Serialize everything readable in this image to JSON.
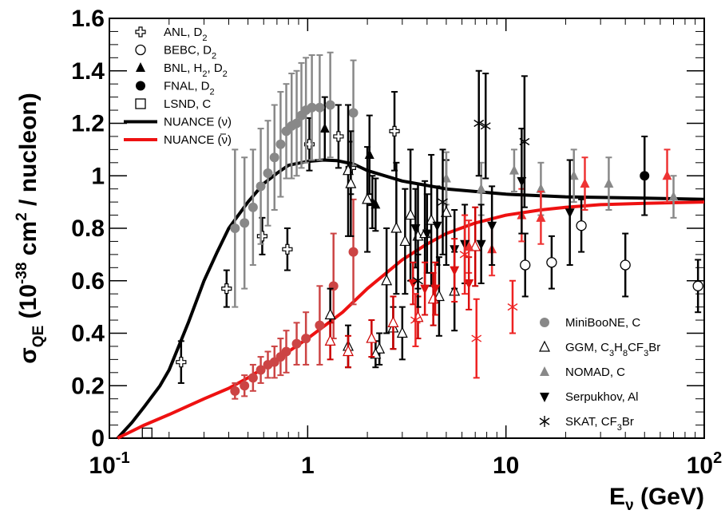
{
  "chart_data": {
    "type": "scatter",
    "x_scale": "log",
    "xlim": [
      0.1,
      100
    ],
    "ylim": [
      0,
      1.6
    ],
    "grid": false,
    "x_ticks": [
      {
        "value": 0.1,
        "base": "10",
        "exp": "-1"
      },
      {
        "value": 1,
        "base": "1",
        "exp": ""
      },
      {
        "value": 10,
        "base": "10",
        "exp": ""
      },
      {
        "value": 100,
        "base": "10",
        "exp": "2"
      }
    ],
    "y_ticks": [
      {
        "value": 0,
        "label": "0"
      },
      {
        "value": 0.2,
        "label": "0.2"
      },
      {
        "value": 0.4,
        "label": "0.4"
      },
      {
        "value": 0.6,
        "label": "0.6"
      },
      {
        "value": 0.8,
        "label": "0.8"
      },
      {
        "value": 1.0,
        "label": "1"
      },
      {
        "value": 1.2,
        "label": "1.2"
      },
      {
        "value": 1.4,
        "label": "1.4"
      },
      {
        "value": 1.6,
        "label": "1.6"
      }
    ],
    "xlabel": {
      "main": "E",
      "sub": "ν",
      "rest": " (GeV)"
    },
    "ylabel": {
      "main": "σ",
      "sub": "QE",
      "mid": " (10",
      "sup1": "-38",
      "mid2": " cm",
      "sup2": "2",
      "rest": " / nucleon)"
    },
    "legend_top": [
      {
        "marker": "open-cross",
        "label": "ANL, D",
        "sub": "2"
      },
      {
        "marker": "open-circle",
        "label": "BEBC, D",
        "sub": "2"
      },
      {
        "marker": "filled-triangle",
        "label": "BNL, H",
        "sub": "2",
        "label2": ", D",
        "sub2": "2"
      },
      {
        "marker": "filled-circle",
        "label": "FNAL, D",
        "sub": "2"
      },
      {
        "marker": "open-square",
        "label": "LSND, C"
      },
      {
        "marker": "black-line",
        "label": "NUANCE (ν)"
      },
      {
        "marker": "red-line",
        "label": "NUANCE (ν)",
        "overline": true
      }
    ],
    "legend_bottom": [
      {
        "marker": "gray-circle",
        "label": "MiniBooNE, C"
      },
      {
        "marker": "open-triangle",
        "label": "GGM, C",
        "sub": "3",
        "label2": "H",
        "sub2": "8",
        "label3": "CF",
        "sub3": "3",
        "label4": "Br"
      },
      {
        "marker": "gray-triangle",
        "label": "NOMAD, C"
      },
      {
        "marker": "down-triangle",
        "label": "Serpukhov, Al"
      },
      {
        "marker": "star",
        "label": "SKAT, CF",
        "sub": "3",
        "label2": "Br"
      }
    ],
    "series": [
      {
        "name": "NUANCE (ν)",
        "kind": "curve",
        "color": "#000000",
        "x": [
          0.11,
          0.13,
          0.15,
          0.18,
          0.2,
          0.25,
          0.3,
          0.35,
          0.4,
          0.5,
          0.6,
          0.7,
          0.8,
          1.0,
          1.2,
          1.4,
          1.7,
          2.0,
          3,
          5,
          10,
          20,
          50,
          100
        ],
        "y": [
          0.0,
          0.06,
          0.12,
          0.2,
          0.26,
          0.44,
          0.6,
          0.71,
          0.8,
          0.9,
          0.97,
          1.01,
          1.04,
          1.055,
          1.06,
          1.058,
          1.045,
          1.02,
          0.98,
          0.95,
          0.93,
          0.92,
          0.915,
          0.91
        ]
      },
      {
        "name": "NUANCE (ν̄)",
        "kind": "curve",
        "color": "#ee1111",
        "x": [
          0.11,
          0.15,
          0.2,
          0.3,
          0.4,
          0.5,
          0.7,
          1.0,
          1.5,
          2,
          3,
          4,
          5,
          7,
          10,
          15,
          20,
          30,
          50,
          100
        ],
        "y": [
          0.0,
          0.05,
          0.09,
          0.15,
          0.19,
          0.23,
          0.3,
          0.38,
          0.48,
          0.57,
          0.68,
          0.74,
          0.78,
          0.82,
          0.85,
          0.87,
          0.88,
          0.89,
          0.895,
          0.9
        ]
      },
      {
        "name": "ANL, D2",
        "marker": "open-cross",
        "color": "#000000",
        "points": [
          [
            0.23,
            0.29,
            0.08
          ],
          [
            0.39,
            0.57,
            0.07
          ],
          [
            0.59,
            0.77,
            0.07
          ],
          [
            0.79,
            0.72,
            0.08
          ],
          [
            1.02,
            1.12,
            0.1
          ],
          [
            1.43,
            1.15,
            0.12
          ],
          [
            2.74,
            1.17,
            0.15
          ],
          [
            1.65,
            1.03,
            0.1
          ]
        ]
      },
      {
        "name": "BEBC, D2",
        "marker": "open-circle",
        "color": "#000000",
        "points": [
          [
            12.5,
            0.66,
            0.12
          ],
          [
            17,
            0.67,
            0.1
          ],
          [
            24,
            0.81,
            0.1
          ],
          [
            40,
            0.66,
            0.12
          ],
          [
            93,
            0.58,
            0.1
          ]
        ]
      },
      {
        "name": "BNL, H2, D2",
        "marker": "filled-triangle",
        "color": "#000000",
        "points": [
          [
            1.22,
            1.18,
            0.12
          ],
          [
            2.05,
            1.08,
            0.15
          ],
          [
            2.12,
            0.9,
            0.1
          ],
          [
            2.2,
            0.89,
            0.1
          ]
        ]
      },
      {
        "name": "FNAL, D2",
        "marker": "filled-circle",
        "color": "#000000",
        "points": [
          [
            50,
            1.0,
            0.15
          ]
        ]
      },
      {
        "name": "LSND, C",
        "marker": "open-square",
        "color": "#000000",
        "points": [
          [
            0.155,
            0.02,
            0.0
          ]
        ]
      },
      {
        "name": "MiniBooNE, C (ν)",
        "marker": "gray-circle",
        "color": "#888888",
        "points": [
          [
            0.43,
            0.8,
            0.3
          ],
          [
            0.48,
            0.82,
            0.25
          ],
          [
            0.53,
            0.88,
            0.22
          ],
          [
            0.58,
            0.96,
            0.22
          ],
          [
            0.63,
            1.01,
            0.2
          ],
          [
            0.68,
            1.07,
            0.2
          ],
          [
            0.73,
            1.12,
            0.2
          ],
          [
            0.78,
            1.17,
            0.18
          ],
          [
            0.83,
            1.19,
            0.2
          ],
          [
            0.88,
            1.2,
            0.2
          ],
          [
            0.93,
            1.23,
            0.2
          ],
          [
            0.98,
            1.25,
            0.2
          ],
          [
            1.05,
            1.26,
            0.2
          ],
          [
            1.15,
            1.26,
            0.2
          ],
          [
            1.3,
            1.27,
            0.2
          ],
          [
            1.7,
            1.24,
            0.2
          ]
        ]
      },
      {
        "name": "MiniBooNE, C (ν̄)",
        "marker": "gray-circle",
        "color": "#cc4444",
        "points": [
          [
            0.43,
            0.18,
            0.03
          ],
          [
            0.48,
            0.2,
            0.04
          ],
          [
            0.53,
            0.23,
            0.05
          ],
          [
            0.58,
            0.26,
            0.05
          ],
          [
            0.63,
            0.28,
            0.05
          ],
          [
            0.68,
            0.29,
            0.06
          ],
          [
            0.73,
            0.31,
            0.07
          ],
          [
            0.78,
            0.33,
            0.08
          ],
          [
            0.88,
            0.36,
            0.08
          ],
          [
            0.98,
            0.38,
            0.1
          ],
          [
            1.15,
            0.43,
            0.15
          ],
          [
            1.35,
            0.58,
            0.2
          ],
          [
            1.7,
            0.71,
            0.2
          ]
        ]
      },
      {
        "name": "GGM",
        "marker": "open-triangle",
        "color": "#000000",
        "points": [
          [
            1.3,
            0.47,
            0.1
          ],
          [
            1.6,
            1.02,
            0.25
          ],
          [
            1.65,
            0.97,
            0.2
          ],
          [
            2.0,
            0.91,
            0.2
          ],
          [
            2.3,
            0.34,
            0.06
          ],
          [
            2.5,
            0.6,
            0.2
          ],
          [
            2.8,
            0.8,
            0.25
          ],
          [
            3.1,
            0.75,
            0.2
          ],
          [
            3.3,
            0.85,
            0.25
          ],
          [
            3.6,
            0.77,
            0.2
          ],
          [
            3.9,
            0.78,
            0.2
          ],
          [
            4.2,
            0.83,
            0.25
          ],
          [
            4.6,
            0.54,
            0.15
          ],
          [
            5.0,
            0.86,
            0.2
          ],
          [
            5.5,
            0.56,
            0.15
          ],
          [
            2.2,
            0.32,
            0.05
          ],
          [
            1.6,
            0.35,
            0.08
          ],
          [
            2.7,
            0.42,
            0.08
          ],
          [
            3.0,
            0.4,
            0.1
          ]
        ]
      },
      {
        "name": "GGM-red",
        "marker": "open-triangle",
        "color": "#cc0000",
        "points": [
          [
            1.3,
            0.37,
            0.07
          ],
          [
            1.6,
            0.33,
            0.06
          ],
          [
            2.1,
            0.38,
            0.07
          ],
          [
            2.7,
            0.44,
            0.1
          ],
          [
            3.6,
            0.46,
            0.08
          ],
          [
            4.3,
            0.53,
            0.1
          ],
          [
            7.0,
            0.73,
            0.15
          ]
        ]
      },
      {
        "name": "NOMAD, C",
        "marker": "gray-triangle",
        "color": "#888888",
        "points": [
          [
            5.0,
            0.99,
            0.1
          ],
          [
            7.5,
            0.95,
            0.1
          ],
          [
            11,
            1.02,
            0.08
          ],
          [
            15,
            0.95,
            0.1
          ],
          [
            22,
            1.0,
            0.1
          ],
          [
            33,
            0.97,
            0.1
          ],
          [
            70,
            0.92,
            0.08
          ]
        ]
      },
      {
        "name": "NOMAD-red",
        "marker": "gray-triangle",
        "color": "#ee3333",
        "points": [
          [
            6.5,
            0.73,
            0.1
          ],
          [
            8.5,
            0.72,
            0.1
          ],
          [
            12,
            0.85,
            0.1
          ],
          [
            15,
            0.84,
            0.1
          ],
          [
            25,
            0.97,
            0.1
          ],
          [
            65,
            1.0,
            0.1
          ]
        ]
      },
      {
        "name": "Serpukhov, Al",
        "marker": "down-triangle",
        "color": "#000000",
        "points": [
          [
            3.5,
            0.8,
            0.15
          ],
          [
            4.0,
            0.78,
            0.15
          ],
          [
            4.5,
            0.81,
            0.15
          ],
          [
            5.5,
            0.72,
            0.15
          ],
          [
            6.2,
            0.74,
            0.15
          ],
          [
            7.5,
            0.74,
            0.15
          ],
          [
            8.5,
            0.81,
            0.15
          ],
          [
            12,
            0.98,
            0.2
          ],
          [
            21,
            0.86,
            0.2
          ]
        ]
      },
      {
        "name": "Serpukhov-red",
        "marker": "down-triangle",
        "color": "#dd1111",
        "points": [
          [
            3.4,
            0.59,
            0.08
          ],
          [
            3.9,
            0.57,
            0.1
          ],
          [
            4.4,
            0.57,
            0.1
          ],
          [
            5.5,
            0.64,
            0.12
          ],
          [
            6.5,
            0.59,
            0.1
          ]
        ]
      },
      {
        "name": "SKAT, CF3Br",
        "marker": "star",
        "color": "#000000",
        "points": [
          [
            3.6,
            0.6,
            0.1
          ],
          [
            7.3,
            1.2,
            0.2
          ],
          [
            7.9,
            1.19,
            0.2
          ],
          [
            12.4,
            1.13,
            0.25
          ],
          [
            4.8,
            0.9,
            0.2
          ]
        ]
      },
      {
        "name": "SKAT-red",
        "marker": "star",
        "color": "#ee2222",
        "points": [
          [
            3.5,
            0.45,
            0.1
          ],
          [
            6.2,
            0.7,
            0.15
          ],
          [
            7.1,
            0.38,
            0.15
          ],
          [
            10.8,
            0.5,
            0.1
          ]
        ]
      }
    ]
  }
}
